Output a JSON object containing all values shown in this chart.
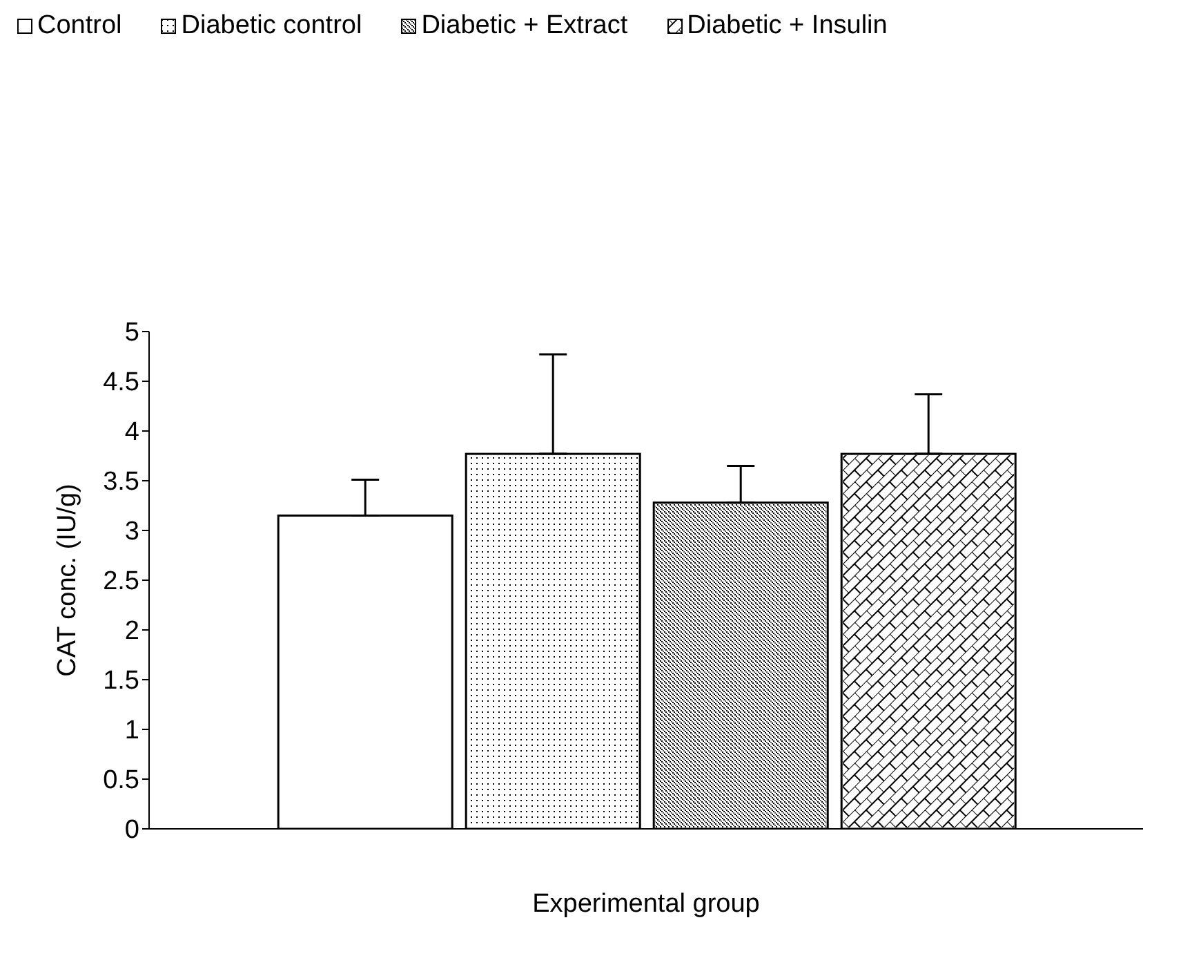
{
  "chart_data": {
    "type": "bar",
    "xlabel": "Experimental group",
    "ylabel": "CAT conc. (IU/g)",
    "categories": [
      null
    ],
    "series": [
      {
        "name": "Control",
        "color": "#ffffff",
        "values": [
          3.15
        ],
        "errors": [
          [
            3.15,
            3.51
          ]
        ]
      },
      {
        "name": "Diabetic control",
        "color": "#ffffff",
        "values": [
          3.77
        ],
        "errors": [
          [
            3.77,
            4.77
          ]
        ]
      },
      {
        "name": "Diabetic + Extract",
        "color": "#ffffff",
        "values": [
          3.28
        ],
        "errors": [
          [
            3.28,
            3.65
          ]
        ]
      },
      {
        "name": "Diabetic + Insulin",
        "color": "#ffffff",
        "values": [
          3.77
        ],
        "errors": [
          [
            3.77,
            4.37
          ]
        ]
      }
    ],
    "ylim": [
      0,
      5
    ],
    "yticks": [
      0,
      0.5,
      1,
      1.5,
      2,
      2.5,
      3,
      3.5,
      4,
      4.5,
      5
    ],
    "grid": false,
    "legend": "top"
  }
}
